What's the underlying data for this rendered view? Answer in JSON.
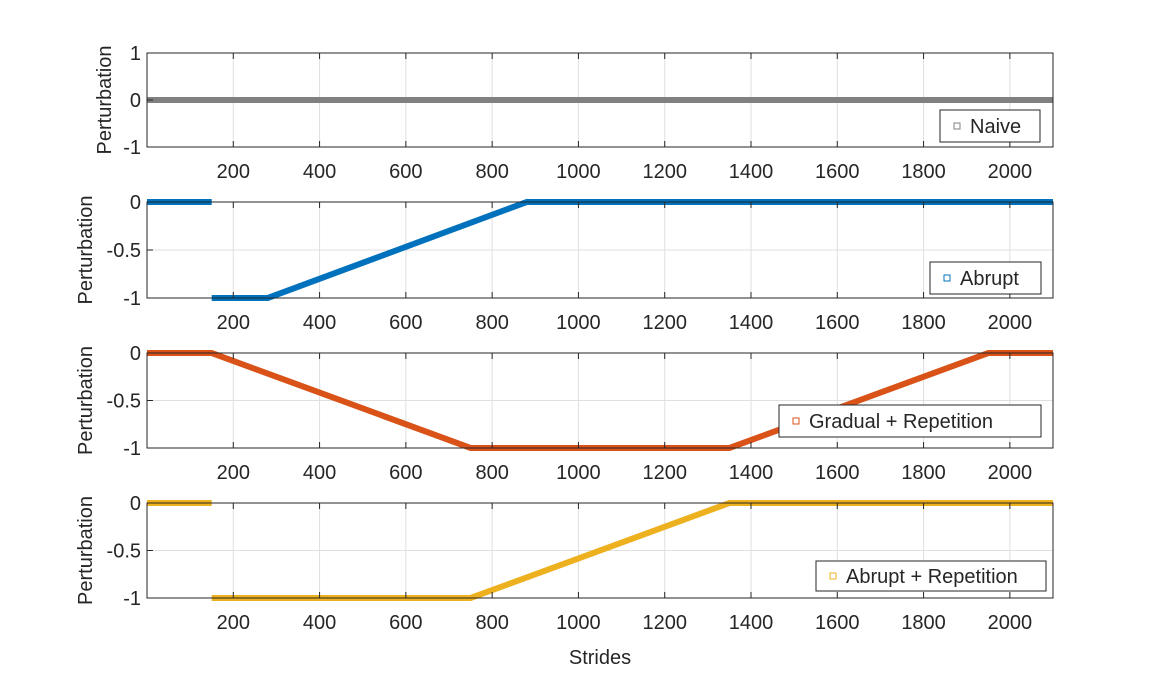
{
  "chart_data": [
    {
      "type": "line",
      "ylabel": "Perturbation",
      "xlabel": "",
      "xlim": [
        0,
        2100
      ],
      "ylim": [
        -1,
        1
      ],
      "xticks": [
        200,
        400,
        600,
        800,
        1000,
        1200,
        1400,
        1600,
        1800,
        2000
      ],
      "yticks": [
        -1,
        0,
        1
      ],
      "ytick_labels": [
        "-1",
        "0",
        "1"
      ],
      "grid": true,
      "legend_position": "bottom-right",
      "series": [
        {
          "name": "Naive",
          "color": "#808080",
          "segments": [
            [
              [
                0,
                0
              ],
              [
                2100,
                0
              ]
            ]
          ]
        }
      ]
    },
    {
      "type": "line",
      "ylabel": "Perturbation",
      "xlabel": "",
      "xlim": [
        0,
        2100
      ],
      "ylim": [
        -1,
        0
      ],
      "xticks": [
        200,
        400,
        600,
        800,
        1000,
        1200,
        1400,
        1600,
        1800,
        2000
      ],
      "yticks": [
        -1,
        -0.5,
        0
      ],
      "ytick_labels": [
        "-1",
        "-0.5",
        "0"
      ],
      "grid": true,
      "legend_position": "bottom-right",
      "series": [
        {
          "name": "Abrupt",
          "color": "#0072BD",
          "segments": [
            [
              [
                0,
                0
              ],
              [
                150,
                0
              ]
            ],
            [
              [
                150,
                -1
              ],
              [
                280,
                -1
              ],
              [
                880,
                0
              ],
              [
                2100,
                0
              ]
            ]
          ]
        }
      ]
    },
    {
      "type": "line",
      "ylabel": "Perturbation",
      "xlabel": "",
      "xlim": [
        0,
        2100
      ],
      "ylim": [
        -1,
        0
      ],
      "xticks": [
        200,
        400,
        600,
        800,
        1000,
        1200,
        1400,
        1600,
        1800,
        2000
      ],
      "yticks": [
        -1,
        -0.5,
        0
      ],
      "ytick_labels": [
        "-1",
        "-0.5",
        "0"
      ],
      "grid": true,
      "legend_position": "right",
      "series": [
        {
          "name": "Gradual + Repetition",
          "color": "#D95319",
          "segments": [
            [
              [
                0,
                0
              ],
              [
                150,
                0
              ],
              [
                750,
                -1
              ],
              [
                1350,
                -1
              ],
              [
                1950,
                0
              ],
              [
                2100,
                0
              ]
            ]
          ]
        }
      ]
    },
    {
      "type": "line",
      "ylabel": "Perturbation",
      "xlabel": "Strides",
      "xlim": [
        0,
        2100
      ],
      "ylim": [
        -1,
        0
      ],
      "xticks": [
        200,
        400,
        600,
        800,
        1000,
        1200,
        1400,
        1600,
        1800,
        2000
      ],
      "yticks": [
        -1,
        -0.5,
        0
      ],
      "ytick_labels": [
        "-1",
        "-0.5",
        "0"
      ],
      "grid": true,
      "legend_position": "bottom-right",
      "series": [
        {
          "name": "Abrupt + Repetition",
          "color": "#EDB120",
          "segments": [
            [
              [
                0,
                0
              ],
              [
                150,
                0
              ]
            ],
            [
              [
                150,
                -1
              ],
              [
                750,
                -1
              ],
              [
                1350,
                0
              ],
              [
                2100,
                0
              ]
            ]
          ]
        }
      ]
    }
  ]
}
